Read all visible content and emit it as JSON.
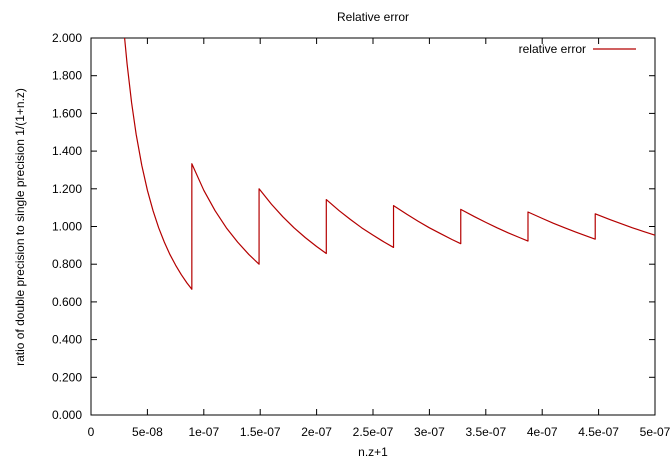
{
  "chart_data": {
    "type": "line",
    "title": "Relative error",
    "xlabel": "n.z+1",
    "ylabel": "ratio of double precision to single precision 1/(1+n.z)",
    "xlim": [
      0,
      5e-07
    ],
    "ylim": [
      0,
      2
    ],
    "grid": false,
    "legend_position": "top-right",
    "x_ticks": [
      0,
      5e-08,
      1e-07,
      1.5e-07,
      2e-07,
      2.5e-07,
      3e-07,
      3.5e-07,
      4e-07,
      4.5e-07,
      5e-07
    ],
    "x_tick_labels": [
      "0",
      "5e-08",
      "1e-07",
      "1.5e-07",
      "2e-07",
      "2.5e-07",
      "3e-07",
      "3.5e-07",
      "4e-07",
      "4.5e-07",
      "5e-07"
    ],
    "y_ticks": [
      0,
      0.2,
      0.4,
      0.6,
      0.8,
      1.0,
      1.2,
      1.4,
      1.6,
      1.8,
      2.0
    ],
    "y_tick_labels": [
      "0.000",
      "0.200",
      "0.400",
      "0.600",
      "0.800",
      "1.000",
      "1.200",
      "1.400",
      "1.600",
      "1.800",
      "2.000"
    ],
    "series": [
      {
        "name": "relative error",
        "color": "#b40000",
        "segments": [
          {
            "x": [
              2.98e-08,
              3.2e-08,
              3.6e-08,
              4e-08,
              4.5e-08,
              5e-08,
              5.5e-08,
              6e-08,
              6.5e-08,
              7e-08,
              7.5e-08,
              8e-08,
              8.5e-08,
              8.94e-08
            ],
            "y": [
              2.0,
              1.862,
              1.656,
              1.49,
              1.325,
              1.192,
              1.084,
              0.993,
              0.917,
              0.851,
              0.795,
              0.745,
              0.701,
              0.667
            ]
          },
          {
            "x": [
              8.94e-08,
              1e-07,
              1.1e-07,
              1.2e-07,
              1.3e-07,
              1.4e-07,
              1.49e-07
            ],
            "y": [
              1.333,
              1.192,
              1.084,
              0.993,
              0.917,
              0.851,
              0.8
            ]
          },
          {
            "x": [
              1.49e-07,
              1.6e-07,
              1.7e-07,
              1.8e-07,
              1.9e-07,
              2e-07,
              2.086e-07
            ],
            "y": [
              1.2,
              1.118,
              1.052,
              0.993,
              0.941,
              0.894,
              0.857
            ]
          },
          {
            "x": [
              2.086e-07,
              2.2e-07,
              2.3e-07,
              2.4e-07,
              2.5e-07,
              2.6e-07,
              2.682e-07
            ],
            "y": [
              1.143,
              1.084,
              1.037,
              0.993,
              0.954,
              0.917,
              0.889
            ]
          },
          {
            "x": [
              2.682e-07,
              2.8e-07,
              2.9e-07,
              3e-07,
              3.1e-07,
              3.2e-07,
              3.278e-07
            ],
            "y": [
              1.111,
              1.065,
              1.028,
              0.993,
              0.962,
              0.931,
              0.909
            ]
          },
          {
            "x": [
              3.278e-07,
              3.4e-07,
              3.5e-07,
              3.6e-07,
              3.7e-07,
              3.8e-07,
              3.874e-07
            ],
            "y": [
              1.091,
              1.052,
              1.022,
              0.993,
              0.966,
              0.941,
              0.923
            ]
          },
          {
            "x": [
              3.874e-07,
              4e-07,
              4.1e-07,
              4.2e-07,
              4.3e-07,
              4.4e-07,
              4.47e-07
            ],
            "y": [
              1.077,
              1.043,
              1.017,
              0.993,
              0.97,
              0.948,
              0.933
            ]
          },
          {
            "x": [
              4.47e-07,
              4.6e-07,
              4.7e-07,
              4.8e-07,
              4.9e-07,
              5e-07
            ],
            "y": [
              1.067,
              1.037,
              1.015,
              0.993,
              0.973,
              0.954
            ]
          }
        ]
      }
    ]
  }
}
